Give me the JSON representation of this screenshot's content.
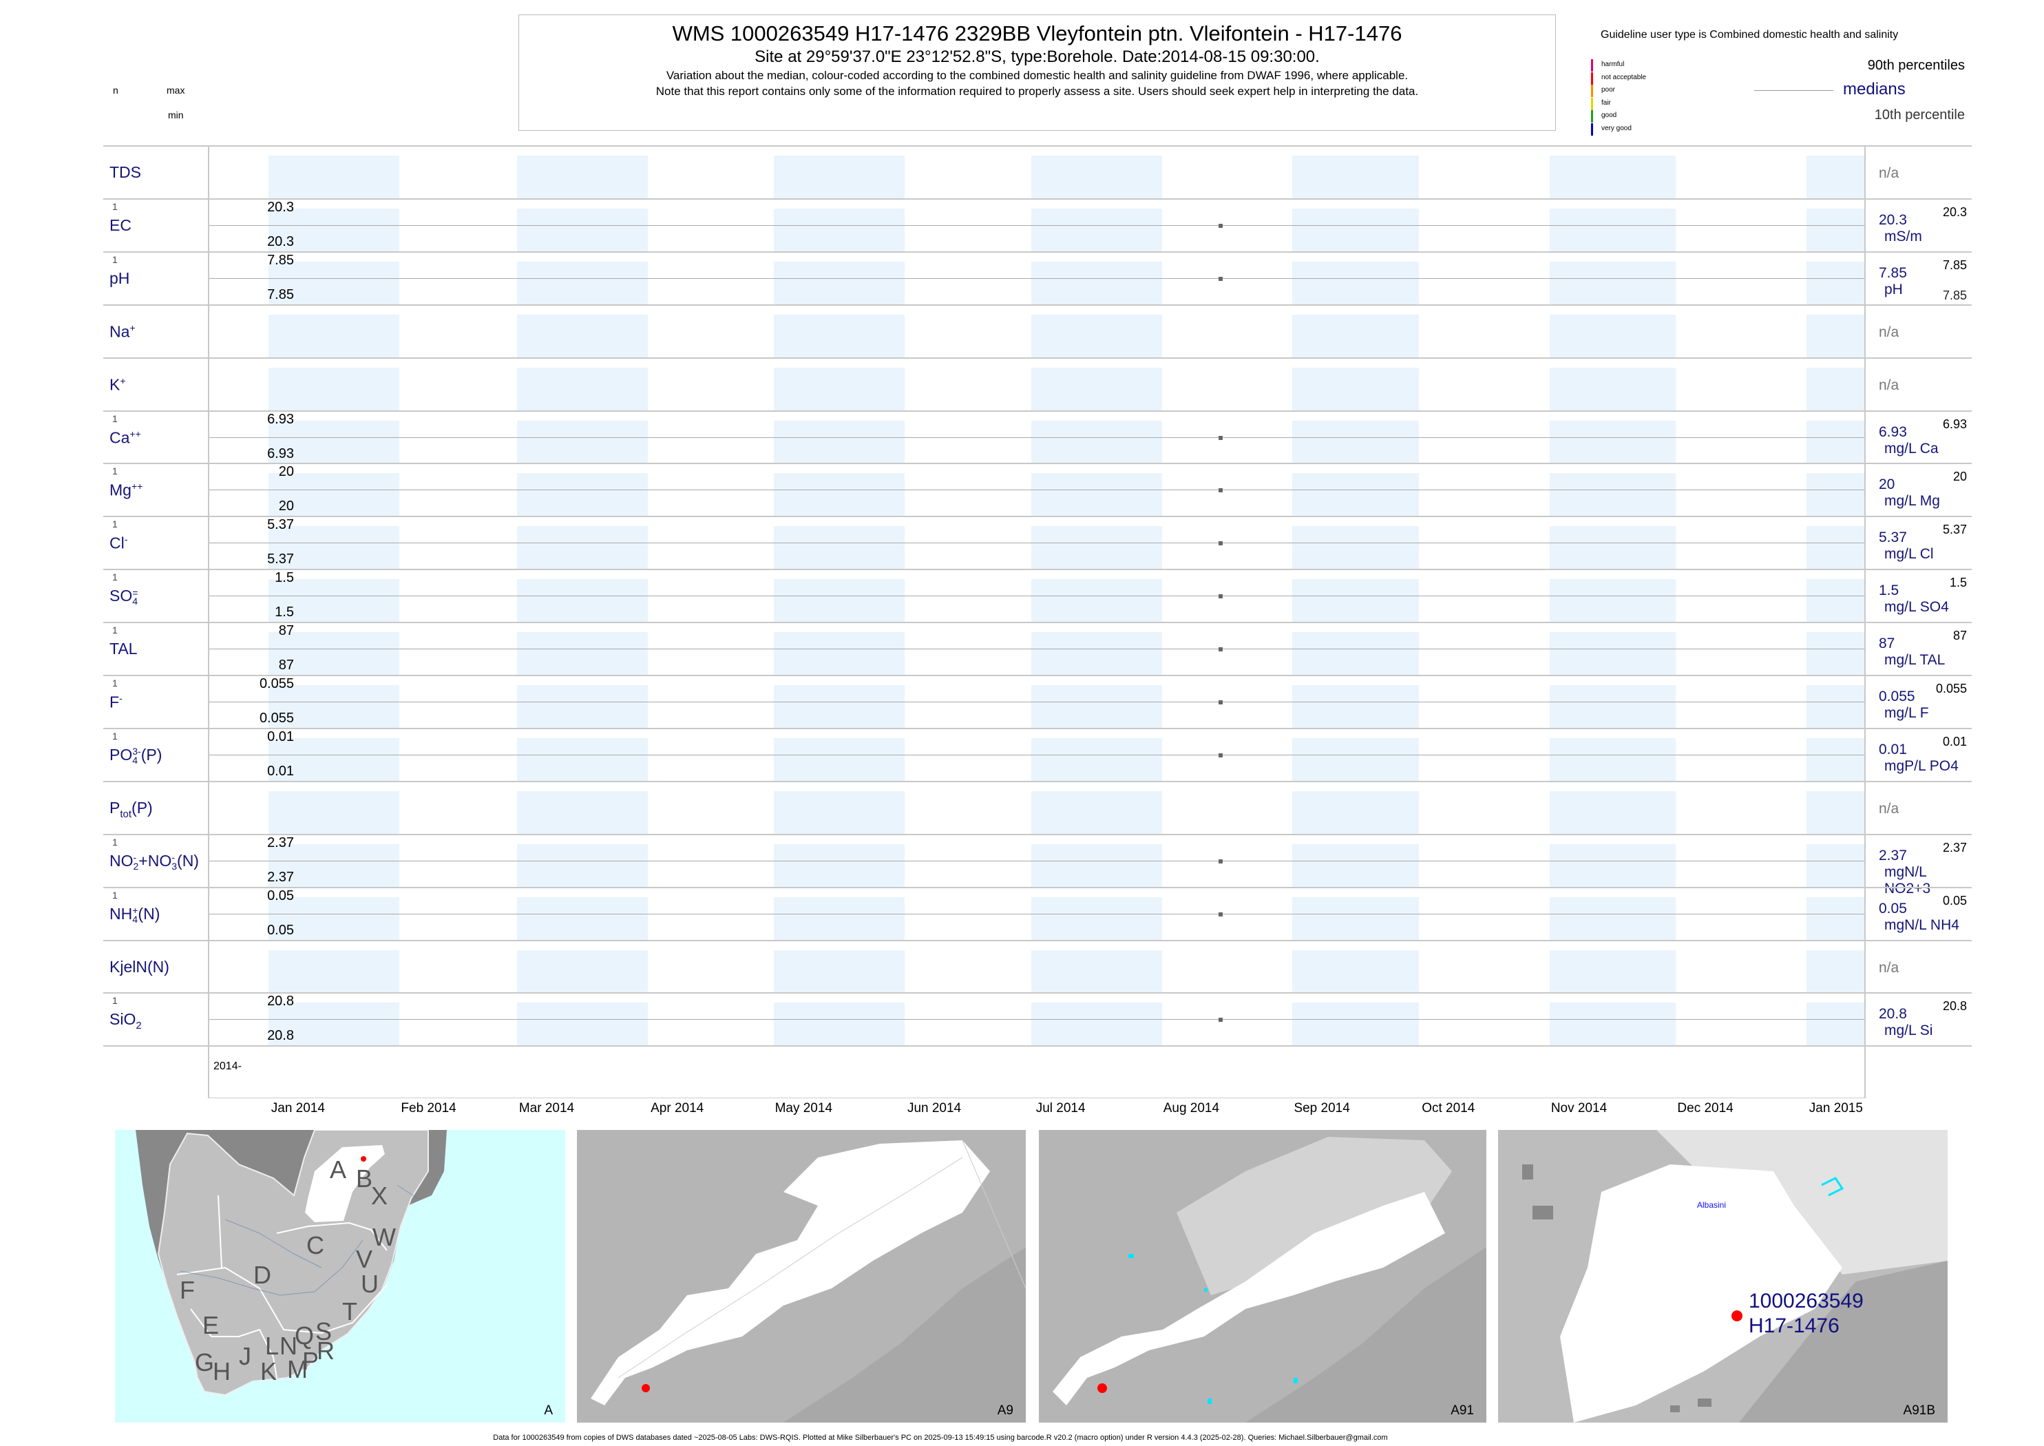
{
  "header": {
    "title": "WMS 1000263549 H17-1476 2329BB Vleyfontein ptn. Vleifontein - H17-1476",
    "subtitle": "Site at 29°59'37.0\"E 23°12'52.8\"S, type:Borehole. Date:2014-08-15 09:30:00.",
    "note1": "Variation about the median,  colour-coded according to the combined domestic health and salinity guideline from DWAF 1996, where applicable.",
    "note2": "Note that this report contains only some of the information required to properly assess a site. Users should seek expert help in interpreting the data."
  },
  "left_header": {
    "n": "n",
    "max": "max",
    "min": "min"
  },
  "legend": {
    "title": "Guideline user type is Combined domestic health and salinity",
    "classes": [
      {
        "label": "harmful",
        "color": "#e0007a"
      },
      {
        "label": "not acceptable",
        "color": "#ff0000"
      },
      {
        "label": "poor",
        "color": "#ff8c00"
      },
      {
        "label": "fair",
        "color": "#e6d200"
      },
      {
        "label": "good",
        "color": "#1fa01f"
      },
      {
        "label": "very good",
        "color": "#0000cc"
      }
    ],
    "p90": "90th percentiles",
    "medians": "medians",
    "p10": "10th percentile"
  },
  "chart_data": {
    "type": "scatter",
    "title": "WMS 1000263549 H17-1476 2329BB Vleyfontein ptn. Vleifontein - H17-1476",
    "xlabel": "",
    "x_range": [
      "2013-12-18",
      "2015-01-14"
    ],
    "year_label": "2014-",
    "months": [
      "Jan 2014",
      "Feb 2014",
      "Mar 2014",
      "Apr 2014",
      "May 2014",
      "Jun 2014",
      "Jul 2014",
      "Aug 2014",
      "Sep 2014",
      "Oct 2014",
      "Nov 2014",
      "Dec 2014",
      "Jan 2015"
    ],
    "sample_date": "2014-08-15",
    "na_text": "n/a",
    "rows": [
      {
        "label": [
          {
            "t": "TDS"
          }
        ],
        "na": true
      },
      {
        "label": [
          {
            "t": "EC"
          }
        ],
        "n": "1",
        "max": "20.3",
        "min": "20.3",
        "value": "20.3",
        "unit": "mS/m",
        "rmax": "20.3"
      },
      {
        "label": [
          {
            "t": "pH"
          }
        ],
        "n": "1",
        "max": "7.85",
        "min": "7.85",
        "value": "7.85",
        "unit": "pH",
        "rmax": "7.85",
        "rmin": "7.85"
      },
      {
        "label": [
          {
            "t": "Na",
            "sup": "+"
          }
        ],
        "na": true
      },
      {
        "label": [
          {
            "t": "K",
            "sup": "+"
          }
        ],
        "na": true
      },
      {
        "label": [
          {
            "t": "Ca",
            "sup": "++"
          }
        ],
        "n": "1",
        "max": "6.93",
        "min": "6.93",
        "value": "6.93",
        "unit": "mg/L Ca",
        "rmax": "6.93"
      },
      {
        "label": [
          {
            "t": "Mg",
            "sup": "++"
          }
        ],
        "n": "1",
        "max": "20",
        "min": "20",
        "value": "20",
        "unit": "mg/L Mg",
        "rmax": "20"
      },
      {
        "label": [
          {
            "t": "Cl",
            "sup": "-"
          }
        ],
        "n": "1",
        "max": "5.37",
        "min": "5.37",
        "value": "5.37",
        "unit": "mg/L Cl",
        "rmax": "5.37"
      },
      {
        "label": [
          {
            "t": "SO",
            "sub": "4",
            "sup": "="
          }
        ],
        "n": "1",
        "max": "1.5",
        "min": "1.5",
        "value": "1.5",
        "unit": "mg/L SO4",
        "rmax": "1.5"
      },
      {
        "label": [
          {
            "t": "TAL"
          }
        ],
        "n": "1",
        "max": "87",
        "min": "87",
        "value": "87",
        "unit": "mg/L TAL",
        "rmax": "87"
      },
      {
        "label": [
          {
            "t": "F",
            "sup": "-"
          }
        ],
        "n": "1",
        "max": "0.055",
        "min": "0.055",
        "value": "0.055",
        "unit": "mg/L F",
        "rmax": "0.055"
      },
      {
        "label": [
          {
            "t": "PO",
            "sub": "4",
            "sup": "3-"
          },
          {
            "t": "(P)"
          }
        ],
        "n": "1",
        "max": "0.01",
        "min": "0.01",
        "value": "0.01",
        "unit": "mgP/L PO4",
        "rmax": "0.01"
      },
      {
        "label": [
          {
            "t": "P",
            "sub": "tot"
          },
          {
            "t": "(P)"
          }
        ],
        "na": true
      },
      {
        "label": [
          {
            "t": "NO",
            "sub": "2",
            "sup": "-"
          },
          {
            "t": "+NO",
            "sub": "3",
            "sup": "-"
          },
          {
            "t": "(N)"
          }
        ],
        "n": "1",
        "max": "2.37",
        "min": "2.37",
        "value": "2.37",
        "unit": "mgN/L NO2+3",
        "rmax": "2.37"
      },
      {
        "label": [
          {
            "t": "NH",
            "sub": "4",
            "sup": "+"
          },
          {
            "t": "(N)"
          }
        ],
        "n": "1",
        "max": "0.05",
        "min": "0.05",
        "value": "0.05",
        "unit": "mgN/L NH4",
        "rmax": "0.05"
      },
      {
        "label": [
          {
            "t": "KjelN(N)"
          }
        ],
        "na": true
      },
      {
        "label": [
          {
            "t": "SiO",
            "sub": "2"
          }
        ],
        "n": "1",
        "max": "20.8",
        "min": "20.8",
        "value": "20.8",
        "unit": "mg/L Si",
        "rmax": "20.8"
      }
    ]
  },
  "maps": {
    "a": {
      "name": "A",
      "regions": [
        "A",
        "B",
        "X",
        "W",
        "C",
        "V",
        "D",
        "U",
        "F",
        "T",
        "E",
        "S",
        "Q",
        "N",
        "L",
        "R",
        "J",
        "P",
        "G",
        "M",
        "H",
        "K"
      ]
    },
    "a9": {
      "name": "A9"
    },
    "a91": {
      "name": "A91"
    },
    "a91b": {
      "name": "A91B",
      "site_id": "1000263549",
      "site_code": "H17-1476",
      "town": "Albasini"
    }
  },
  "footer": "Data for 1000263549 from copies of DWS databases dated ~2025-08-05 Labs: DWS-RQIS. Plotted at Mike Silberbauer's PC on 2025-09-13 15:49:15 using barcode.R v20.2 (macro option) under R version 4.4.3 (2025-02-28). Queries: Michael.Silberbauer@gmail.com"
}
